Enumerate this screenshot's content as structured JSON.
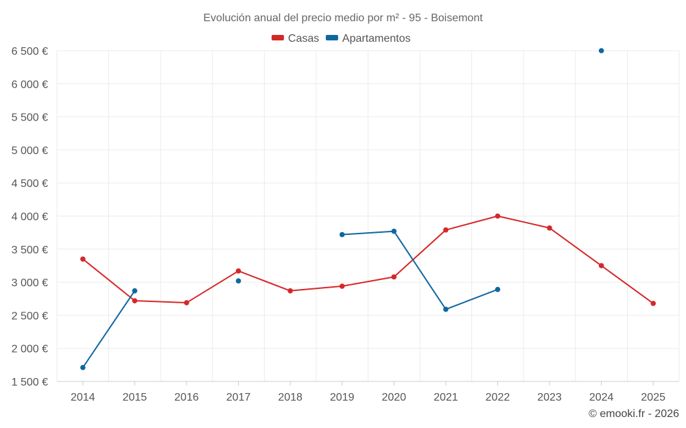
{
  "chart_data": {
    "type": "line",
    "title": "Evolución anual del precio medio por m² - 95 - Boisemont",
    "xlabel": "",
    "ylabel": "",
    "categories": [
      "2014",
      "2015",
      "2016",
      "2017",
      "2018",
      "2019",
      "2020",
      "2021",
      "2022",
      "2023",
      "2024",
      "2025"
    ],
    "ylim": [
      1500,
      6500
    ],
    "yticks": [
      1500,
      2000,
      2500,
      3000,
      3500,
      4000,
      4500,
      5000,
      5500,
      6000,
      6500
    ],
    "ytick_labels": [
      "1 500 €",
      "2 000 €",
      "2 500 €",
      "3 000 €",
      "3 500 €",
      "4 000 €",
      "4 500 €",
      "5 000 €",
      "5 500 €",
      "6 000 €",
      "6 500 €"
    ],
    "grid": true,
    "legend_position": "top-center",
    "series": [
      {
        "name": "Casas",
        "color": "#d62728",
        "values": [
          3350,
          2720,
          2690,
          3170,
          2870,
          2940,
          3080,
          3790,
          4000,
          3820,
          3250,
          2680
        ]
      },
      {
        "name": "Apartamentos",
        "color": "#0f67a0",
        "values": [
          1710,
          2870,
          null,
          3020,
          null,
          3720,
          3770,
          2590,
          2890,
          null,
          6500,
          null
        ]
      }
    ]
  },
  "footer": {
    "credit": "© emooki.fr - 2026"
  }
}
